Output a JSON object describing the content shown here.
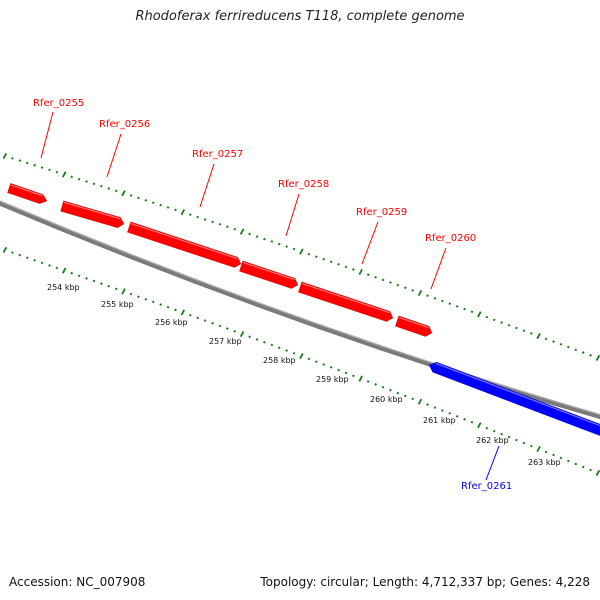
{
  "title": "Rhodoferax ferrireducens T118, complete genome",
  "footer": {
    "accession": "Accession: NC_007908",
    "stats": "Topology: circular; Length: 4,712,337 bp; Genes: 4,228"
  },
  "colors": {
    "forward_gene": "#ff0000",
    "reverse_gene": "#0000ff",
    "backbone": "#808080",
    "ticks": "#1a7a1a"
  },
  "kbp_labels": [
    "254 kbp",
    "255 kbp",
    "256 kbp",
    "257 kbp",
    "258 kbp",
    "259 kbp",
    "260 kbp",
    "261 kbp",
    "262 kbp",
    "263 kbp"
  ],
  "genes": [
    {
      "id": "Rfer_0255",
      "strand": "forward"
    },
    {
      "id": "Rfer_0256",
      "strand": "forward"
    },
    {
      "id": "Rfer_0257",
      "strand": "forward"
    },
    {
      "id": "Rfer_0258",
      "strand": "forward"
    },
    {
      "id": "Rfer_0259",
      "strand": "forward"
    },
    {
      "id": "Rfer_0260",
      "strand": "forward"
    },
    {
      "id": "Rfer_0261",
      "strand": "reverse"
    }
  ]
}
